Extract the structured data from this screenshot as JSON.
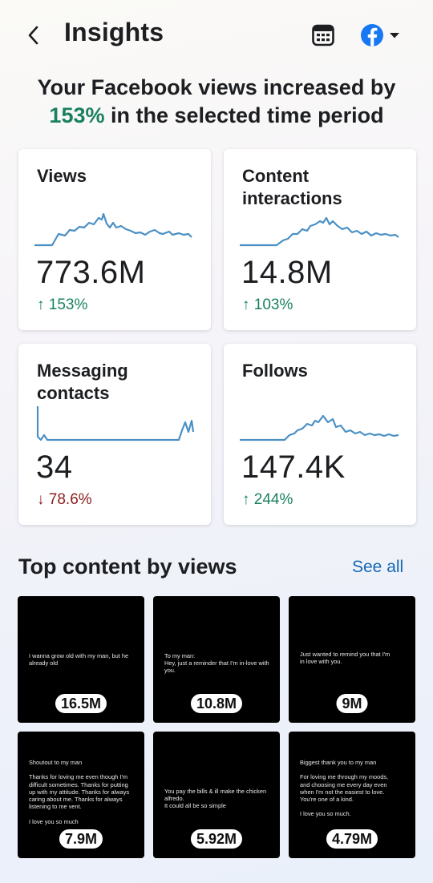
{
  "header": {
    "title": "Insights",
    "icons": [
      "back-arrow-icon",
      "calendar-icon",
      "facebook-icon",
      "caret-down-icon"
    ]
  },
  "headline": {
    "line1": "Your Facebook views increased by",
    "highlight": "153%",
    "line2_rest": " in the selected time period"
  },
  "colors": {
    "positive": "#1a8060",
    "negative": "#8a1d1d",
    "link": "#1467b5",
    "sparkline": "#4a90c4",
    "facebook": "#1877f2"
  },
  "metrics": [
    {
      "title": "Views",
      "value": "773.6M",
      "change": "153%",
      "direction": "up"
    },
    {
      "title": "Content interactions",
      "value": "14.8M",
      "change": "103%",
      "direction": "up"
    },
    {
      "title": "Messaging contacts",
      "value": "34",
      "change": "78.6%",
      "direction": "down"
    },
    {
      "title": "Follows",
      "value": "147.4K",
      "change": "244%",
      "direction": "up"
    }
  ],
  "top_content": {
    "title": "Top content by views",
    "see_all": "See all",
    "items": [
      {
        "text": "I wanna grow old with my man, but he\nalready old",
        "views": "16.5M"
      },
      {
        "text": "To my man:\nHey, just a reminder that I'm in-love with you.",
        "views": "10.8M"
      },
      {
        "text": "Just wanted to remind you that I'm\nin love with you.",
        "views": "9M"
      },
      {
        "text": "Shoutout to my man\n\nThanks for loving me even though I'm\ndifficult sometimes. Thanks for putting\nup with my attitude. Thanks for always\ncaring about me. Thanks for always\nlistening to me vent.\n\nI love you so much",
        "views": "7.9M"
      },
      {
        "text": "You pay the bills & ill make the chicken alfredo.\nIt could all be so simple",
        "views": "5.92M"
      },
      {
        "text": "Biggest thank you to my man\n\nFor loving me through my moods,\nand choosing me every day even\nwhen I'm not the easiest to love.\nYou're one of a kind.\n\nI love you so much.",
        "views": "4.79M"
      }
    ]
  }
}
